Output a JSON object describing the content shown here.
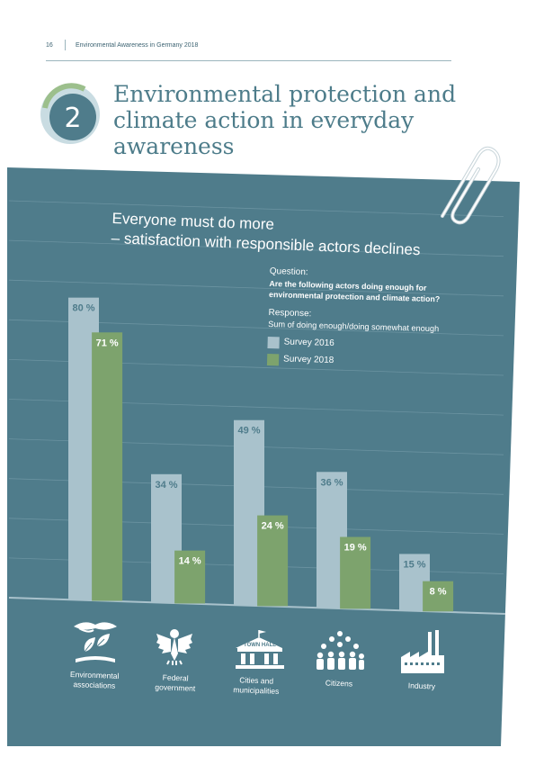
{
  "header": {
    "page_number": "16",
    "running_title": "Environmental Awareness in Germany 2018"
  },
  "chapter": {
    "number": "2",
    "title_lines": [
      "Environmental protection and",
      "climate action in everyday",
      "awareness"
    ]
  },
  "chart_title_lines": [
    "Everyone must do more",
    "– satisfaction with responsible actors declines"
  ],
  "question": {
    "label": "Question:",
    "text_lines": [
      "Are the following actors doing enough for",
      "environmental protection and climate action?"
    ]
  },
  "response": {
    "label": "Response:",
    "text": "Sum of doing enough/doing somewhat enough"
  },
  "colors": {
    "panel": "#4f7c8b",
    "grid": "#6b93a1",
    "survey_2016": "#a9c2cc",
    "survey_2018": "#7da36d",
    "badge_dark": "#4f7c8b",
    "badge_green": "#9cbf8c",
    "badge_light": "#c9dce2"
  },
  "chart_data": {
    "type": "bar",
    "categories": [
      "Environmental associations",
      "Federal government",
      "Cities and municipalities",
      "Citizens",
      "Industry"
    ],
    "category_label_lines": [
      [
        "Environmental",
        "associations"
      ],
      [
        "Federal",
        "government"
      ],
      [
        "Cities and",
        "municipalities"
      ],
      [
        "Citizens"
      ],
      [
        "Industry"
      ]
    ],
    "series": [
      {
        "name": "Survey 2016",
        "values": [
          80,
          34,
          49,
          36,
          15
        ],
        "labels": [
          "80 %",
          "34 %",
          "49 %",
          "36 %",
          "15 %"
        ]
      },
      {
        "name": "Survey 2018",
        "values": [
          71,
          14,
          24,
          19,
          8
        ],
        "labels": [
          "71 %",
          "14 %",
          "24 %",
          "19 %",
          "8 %"
        ]
      }
    ],
    "unit": "%",
    "ylim": [
      0,
      80
    ],
    "grid": true,
    "legend_position": "right",
    "icons": [
      "hands-plants-icon",
      "federal-eagle-icon",
      "town-hall-icon",
      "people-group-icon",
      "factory-icon"
    ],
    "town_hall_sign": "TOWN HALL"
  }
}
